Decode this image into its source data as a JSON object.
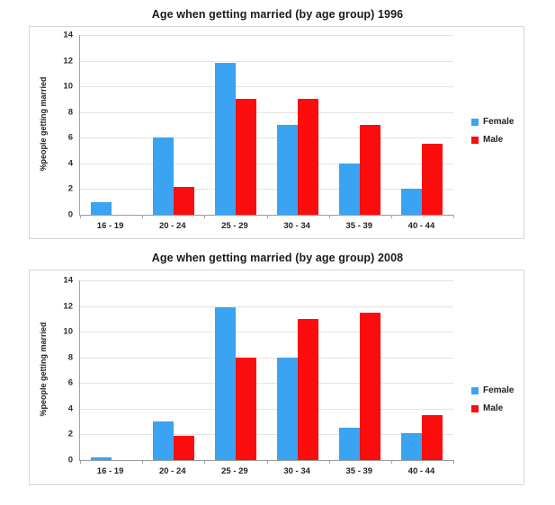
{
  "chart_data": [
    {
      "type": "bar",
      "title": "Age when getting married (by age group) 1996",
      "xlabel": "",
      "ylabel": "%people getting married",
      "categories": [
        "16 - 19",
        "20 - 24",
        "25 - 29",
        "30 - 34",
        "35 - 39",
        "40 - 44"
      ],
      "series": [
        {
          "name": "Female",
          "color": "#3AA3F2",
          "values": [
            1,
            6,
            11.8,
            7,
            4,
            2
          ]
        },
        {
          "name": "Male",
          "color": "#FB0D0D",
          "values": [
            0,
            2.2,
            9,
            9,
            7,
            5.5
          ]
        }
      ],
      "ylim": [
        0,
        14
      ],
      "ytick_step": 2,
      "grid": true,
      "legend_position": "right"
    },
    {
      "type": "bar",
      "title": "Age when getting married (by age group) 2008",
      "xlabel": "",
      "ylabel": "%people getting married",
      "categories": [
        "16 - 19",
        "20 - 24",
        "25 - 29",
        "30 - 34",
        "35 - 39",
        "40 - 44"
      ],
      "series": [
        {
          "name": "Female",
          "color": "#3AA3F2",
          "values": [
            0.2,
            3,
            11.9,
            8,
            2.5,
            2.1
          ]
        },
        {
          "name": "Male",
          "color": "#FB0D0D",
          "values": [
            0,
            1.9,
            8,
            11,
            11.5,
            3.5
          ]
        }
      ],
      "ylim": [
        0,
        14
      ],
      "ytick_step": 2,
      "grid": true,
      "legend_position": "right"
    }
  ]
}
